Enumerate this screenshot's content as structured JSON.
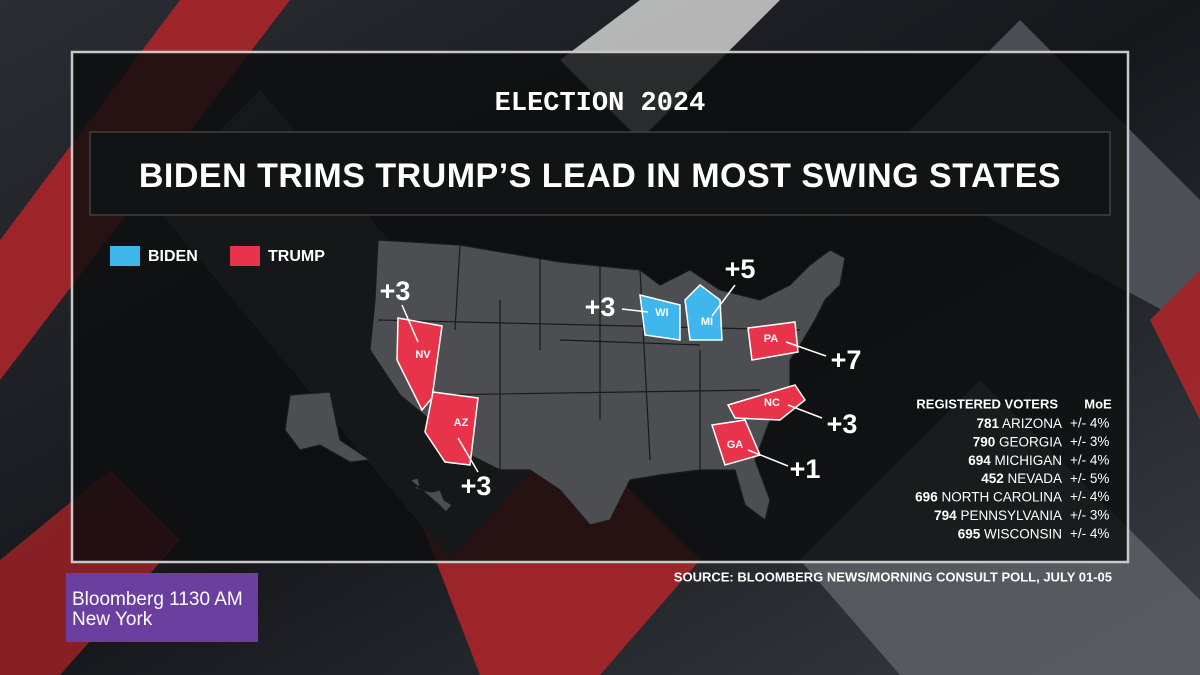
{
  "header": {
    "kicker": "ELECTION 2024",
    "title": "BIDEN TRIMS TRUMP’S LEAD IN MOST SWING STATES"
  },
  "legend": [
    "BIDEN",
    "TRUMP"
  ],
  "states": [
    {
      "abbr": "NV",
      "margin": "+3"
    },
    {
      "abbr": "AZ",
      "margin": "+3"
    },
    {
      "abbr": "WI",
      "margin": "+3"
    },
    {
      "abbr": "MI",
      "margin": "+5"
    },
    {
      "abbr": "PA",
      "margin": "+7"
    },
    {
      "abbr": "NC",
      "margin": "+3"
    },
    {
      "abbr": "GA",
      "margin": "+1"
    }
  ],
  "table": {
    "header": [
      "REGISTERED VOTERS",
      "MoE"
    ],
    "rows": [
      [
        "781",
        "ARIZONA",
        "+/- 4%"
      ],
      [
        "790",
        "GEORGIA",
        "+/- 3%"
      ],
      [
        "694",
        "MICHIGAN",
        "+/- 4%"
      ],
      [
        "452",
        "NEVADA",
        "+/- 5%"
      ],
      [
        "696",
        "NORTH CAROLINA",
        "+/- 4%"
      ],
      [
        "794",
        "PENNSYLVANIA",
        "+/- 3%"
      ],
      [
        "695",
        "WISCONSIN",
        "+/- 4%"
      ]
    ]
  },
  "source": "SOURCE: BLOOMBERG NEWS/MORNING CONSULT POLL, JULY 01-05",
  "bug": [
    "Bloomberg 1130 AM",
    "New York"
  ]
}
